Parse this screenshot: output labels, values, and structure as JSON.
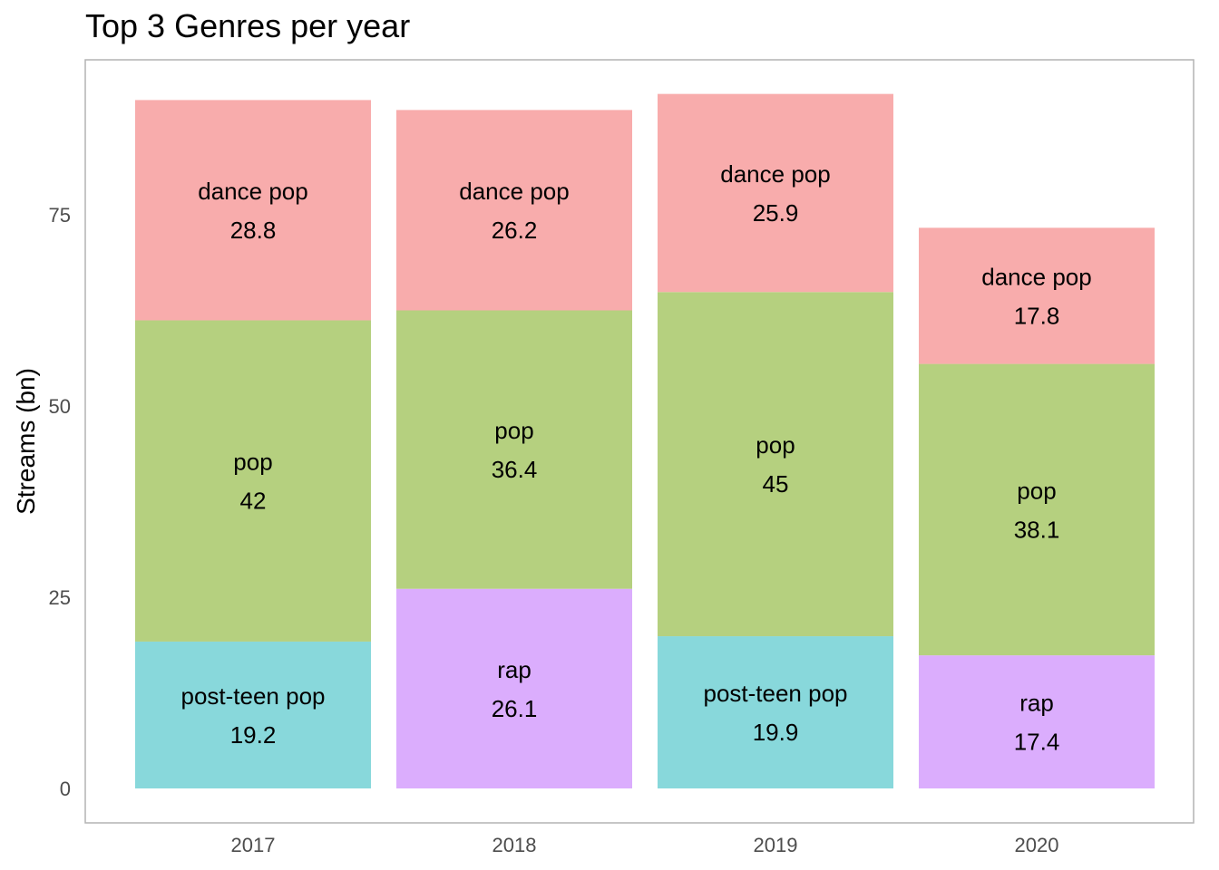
{
  "chart_data": {
    "type": "bar",
    "stacked": true,
    "title": "Top 3 Genres per year",
    "xlabel": "",
    "ylabel": "Streams (bn)",
    "ylim": [
      0,
      95
    ],
    "yticks": [
      0,
      25,
      50,
      75
    ],
    "grid": false,
    "legend": "none",
    "categories": [
      "2017",
      "2018",
      "2019",
      "2020"
    ],
    "stacks": [
      [
        {
          "genre": "post-teen pop",
          "value": 19.2,
          "label": "19.2"
        },
        {
          "genre": "pop",
          "value": 42,
          "label": "42"
        },
        {
          "genre": "dance pop",
          "value": 28.8,
          "label": "28.8"
        }
      ],
      [
        {
          "genre": "rap",
          "value": 26.1,
          "label": "26.1"
        },
        {
          "genre": "pop",
          "value": 36.4,
          "label": "36.4"
        },
        {
          "genre": "dance pop",
          "value": 26.2,
          "label": "26.2"
        }
      ],
      [
        {
          "genre": "post-teen pop",
          "value": 19.9,
          "label": "19.9"
        },
        {
          "genre": "pop",
          "value": 45,
          "label": "45"
        },
        {
          "genre": "dance pop",
          "value": 25.9,
          "label": "25.9"
        }
      ],
      [
        {
          "genre": "rap",
          "value": 17.4,
          "label": "17.4"
        },
        {
          "genre": "pop",
          "value": 38.1,
          "label": "38.1"
        },
        {
          "genre": "dance pop",
          "value": 17.8,
          "label": "17.8"
        }
      ]
    ],
    "colors": {
      "dance pop": "#f8acac",
      "pop": "#b5d07f",
      "post-teen pop": "#88d8db",
      "rap": "#dbadfd"
    }
  }
}
